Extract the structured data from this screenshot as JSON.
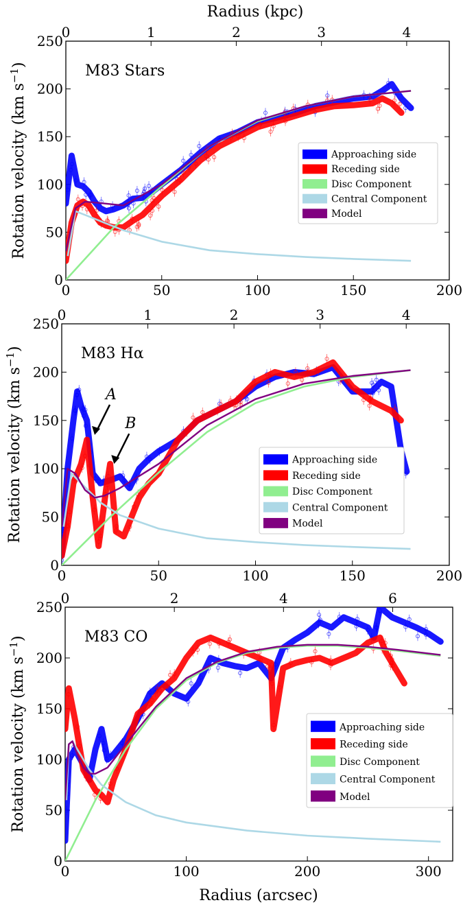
{
  "figure": {
    "top_xlabel": "Radius (kpc)",
    "bottom_xlabel": "Radius (arcsec)",
    "ylabel": "Rotation velocity (km s",
    "ylabel_sup": "−1",
    "ylabel_close": ")"
  },
  "colors": {
    "approaching": "#0000ff",
    "receding": "#ff0000",
    "disc": "#90ee90",
    "central": "#add8e6",
    "model": "#800080"
  },
  "legend": [
    "Approaching side",
    "Receding side",
    "Disc Component",
    "Central Component",
    "Model"
  ],
  "chart_data": [
    {
      "type": "line",
      "title": "M83 Stars",
      "xlabel": "",
      "ylabel": "Rotation velocity (km s−1)",
      "xlim": [
        0,
        200
      ],
      "ylim": [
        0,
        250
      ],
      "xticks": [
        0,
        50,
        100,
        150,
        200
      ],
      "yticks": [
        0,
        50,
        100,
        150,
        200,
        250
      ],
      "top_xticks": [
        0,
        1,
        2,
        3,
        4
      ],
      "top_xlim_kpc": [
        0,
        4.5
      ],
      "legend_position": "right",
      "series": [
        {
          "name": "Approaching side",
          "x": [
            0,
            3,
            6,
            9,
            12,
            15,
            18,
            21,
            25,
            30,
            35,
            40,
            45,
            50,
            60,
            70,
            80,
            90,
            100,
            110,
            120,
            130,
            140,
            150,
            160,
            165,
            170,
            175,
            180
          ],
          "y": [
            80,
            130,
            100,
            98,
            92,
            82,
            75,
            72,
            74,
            78,
            85,
            86,
            92,
            100,
            115,
            133,
            148,
            155,
            165,
            170,
            175,
            182,
            186,
            190,
            192,
            198,
            205,
            190,
            180
          ]
        },
        {
          "name": "Receding side",
          "x": [
            0,
            3,
            6,
            9,
            12,
            15,
            18,
            21,
            25,
            30,
            35,
            40,
            45,
            50,
            60,
            70,
            80,
            90,
            100,
            110,
            120,
            130,
            140,
            150,
            160,
            165,
            170,
            175
          ],
          "y": [
            20,
            60,
            78,
            82,
            78,
            68,
            60,
            57,
            55,
            55,
            62,
            68,
            78,
            88,
            105,
            125,
            140,
            150,
            160,
            166,
            172,
            178,
            182,
            183,
            185,
            190,
            185,
            175
          ]
        },
        {
          "name": "Disc Component",
          "x": [
            0,
            25,
            50,
            75,
            100,
            125,
            150,
            180
          ],
          "y": [
            0,
            55,
            98,
            140,
            166,
            182,
            192,
            198
          ]
        },
        {
          "name": "Central Component",
          "x": [
            1,
            5,
            10,
            20,
            30,
            50,
            75,
            100,
            125,
            150,
            180
          ],
          "y": [
            25,
            72,
            68,
            60,
            52,
            40,
            31,
            27,
            24,
            22,
            20
          ]
        },
        {
          "name": "Model",
          "x": [
            0,
            5,
            10,
            20,
            30,
            50,
            75,
            100,
            125,
            150,
            180
          ],
          "y": [
            30,
            75,
            82,
            80,
            78,
            100,
            140,
            167,
            182,
            192,
            198
          ]
        }
      ]
    },
    {
      "type": "line",
      "title": "M83 Hα",
      "xlabel": "",
      "ylabel": "Rotation velocity (km s−1)",
      "xlim": [
        0,
        200
      ],
      "ylim": [
        0,
        250
      ],
      "xticks": [
        0,
        50,
        100,
        150,
        200
      ],
      "yticks": [
        0,
        50,
        100,
        150,
        200,
        250
      ],
      "top_xticks": [
        0,
        1,
        2,
        3,
        4
      ],
      "top_xlim_kpc": [
        0,
        4.5
      ],
      "legend_position": "right",
      "annotations": [
        {
          "label": "A",
          "x": 17,
          "y": 135
        },
        {
          "label": "B",
          "x": 27,
          "y": 105
        }
      ],
      "series": [
        {
          "name": "Approaching side",
          "x": [
            0,
            3,
            6,
            8,
            10,
            13,
            16,
            20,
            25,
            30,
            35,
            40,
            45,
            50,
            60,
            70,
            80,
            90,
            100,
            110,
            120,
            130,
            140,
            150,
            160,
            165,
            170,
            175,
            178
          ],
          "y": [
            10,
            100,
            150,
            180,
            165,
            150,
            95,
            85,
            88,
            92,
            80,
            100,
            110,
            118,
            130,
            150,
            160,
            170,
            185,
            195,
            200,
            198,
            205,
            180,
            180,
            190,
            185,
            120,
            97
          ]
        },
        {
          "name": "Receding side",
          "x": [
            0,
            3,
            6,
            10,
            13,
            16,
            19,
            23,
            25,
            28,
            32,
            36,
            40,
            45,
            50,
            60,
            70,
            80,
            90,
            100,
            110,
            120,
            130,
            140,
            150,
            160,
            165,
            170,
            175
          ],
          "y": [
            10,
            40,
            85,
            105,
            130,
            70,
            20,
            80,
            105,
            35,
            30,
            50,
            70,
            85,
            95,
            130,
            150,
            160,
            170,
            190,
            200,
            195,
            200,
            210,
            185,
            170,
            165,
            160,
            150
          ]
        },
        {
          "name": "Disc Component",
          "x": [
            0,
            25,
            50,
            75,
            100,
            125,
            150,
            180
          ],
          "y": [
            0,
            50,
            96,
            138,
            168,
            185,
            195,
            202
          ]
        },
        {
          "name": "Central Component",
          "x": [
            1,
            5,
            10,
            20,
            30,
            50,
            75,
            100,
            125,
            150,
            180
          ],
          "y": [
            40,
            95,
            85,
            65,
            52,
            38,
            28,
            24,
            21,
            19,
            17
          ]
        },
        {
          "name": "Model",
          "x": [
            0,
            3,
            7,
            12,
            17,
            22,
            30,
            50,
            75,
            100,
            125,
            150,
            180
          ],
          "y": [
            40,
            100,
            95,
            78,
            70,
            72,
            80,
            105,
            145,
            172,
            188,
            196,
            202
          ]
        }
      ]
    },
    {
      "type": "line",
      "title": "M83 CO",
      "xlabel": "Radius (arcsec)",
      "ylabel": "Rotation velocity (km s−1)",
      "xlim": [
        0,
        320
      ],
      "ylim": [
        0,
        250
      ],
      "xticks": [
        0,
        100,
        200,
        300
      ],
      "yticks": [
        0,
        50,
        100,
        150,
        200,
        250
      ],
      "top_xticks": [
        0,
        2,
        4,
        6
      ],
      "top_xlim_kpc": [
        0,
        7.1
      ],
      "legend_position": "right",
      "series": [
        {
          "name": "Approaching side",
          "x": [
            0,
            3,
            8,
            15,
            20,
            25,
            30,
            35,
            40,
            50,
            60,
            70,
            80,
            90,
            100,
            110,
            120,
            130,
            140,
            150,
            160,
            170,
            180,
            190,
            200,
            210,
            220,
            230,
            240,
            250,
            255,
            260,
            270,
            280,
            290,
            300,
            310
          ],
          "y": [
            20,
            100,
            110,
            95,
            80,
            110,
            130,
            100,
            105,
            120,
            140,
            165,
            175,
            165,
            160,
            175,
            200,
            195,
            192,
            190,
            195,
            180,
            210,
            218,
            225,
            235,
            230,
            240,
            235,
            230,
            220,
            250,
            240,
            235,
            230,
            224,
            216
          ]
        },
        {
          "name": "Receding side",
          "x": [
            0,
            3,
            8,
            15,
            20,
            25,
            30,
            35,
            40,
            50,
            60,
            70,
            80,
            90,
            100,
            110,
            120,
            130,
            140,
            150,
            160,
            170,
            172,
            180,
            190,
            200,
            210,
            220,
            230,
            240,
            250,
            260,
            265,
            270,
            280
          ],
          "y": [
            130,
            170,
            140,
            90,
            80,
            70,
            65,
            58,
            80,
            110,
            145,
            155,
            170,
            180,
            200,
            215,
            220,
            215,
            210,
            205,
            200,
            195,
            130,
            190,
            195,
            198,
            200,
            195,
            200,
            205,
            215,
            220,
            205,
            195,
            175
          ]
        },
        {
          "name": "Disc Component",
          "x": [
            0,
            25,
            50,
            75,
            100,
            125,
            150,
            175,
            200,
            225,
            250,
            275,
            310
          ],
          "y": [
            0,
            60,
            110,
            150,
            178,
            195,
            205,
            210,
            212,
            212,
            210,
            207,
            202
          ]
        },
        {
          "name": "Central Component",
          "x": [
            1,
            3,
            6,
            10,
            20,
            30,
            50,
            75,
            100,
            150,
            200,
            250,
            310
          ],
          "y": [
            60,
            115,
            118,
            110,
            90,
            75,
            58,
            45,
            38,
            30,
            25,
            22,
            19
          ]
        },
        {
          "name": "Model",
          "x": [
            0,
            3,
            6,
            10,
            15,
            20,
            25,
            35,
            50,
            75,
            100,
            125,
            150,
            175,
            200,
            225,
            250,
            275,
            310
          ],
          "y": [
            60,
            115,
            118,
            105,
            92,
            86,
            86,
            92,
            115,
            152,
            180,
            196,
            206,
            211,
            213,
            213,
            211,
            208,
            203
          ]
        }
      ]
    }
  ]
}
